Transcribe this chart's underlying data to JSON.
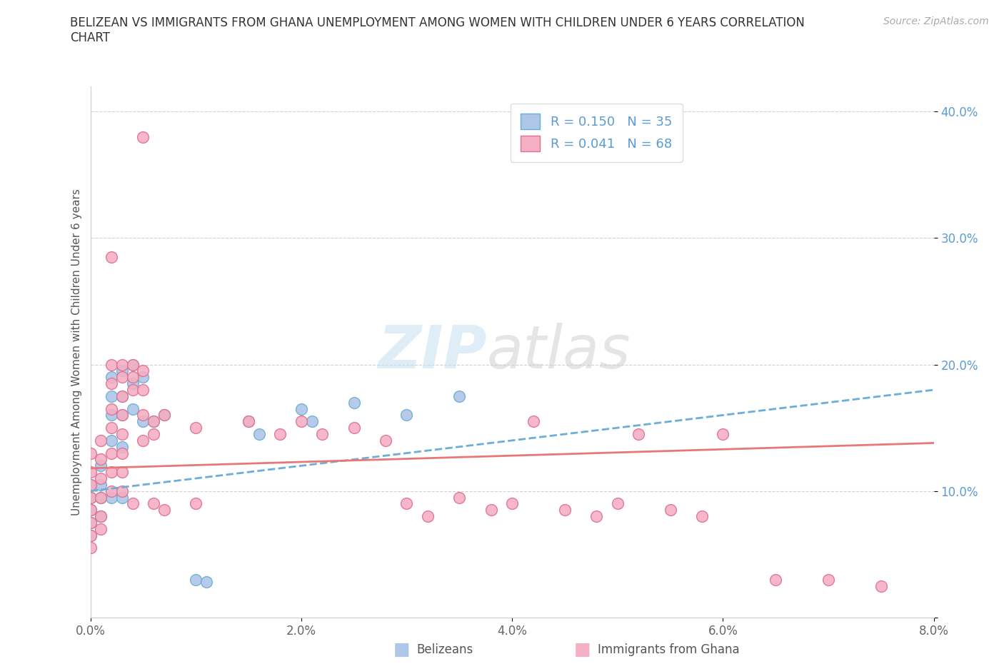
{
  "title": "BELIZEAN VS IMMIGRANTS FROM GHANA UNEMPLOYMENT AMONG WOMEN WITH CHILDREN UNDER 6 YEARS CORRELATION\nCHART",
  "source_text": "Source: ZipAtlas.com",
  "ylabel": "Unemployment Among Women with Children Under 6 years",
  "label_belizeans": "Belizeans",
  "label_ghana": "Immigrants from Ghana",
  "xmin": 0.0,
  "xmax": 0.08,
  "ymin": 0.0,
  "ymax": 0.42,
  "x_ticks": [
    0.0,
    0.02,
    0.04,
    0.06,
    0.08
  ],
  "y_ticks": [
    0.0,
    0.1,
    0.2,
    0.3,
    0.4
  ],
  "belizean_color": "#aec6e8",
  "belizean_edge": "#6baed6",
  "ghana_color": "#f4afc3",
  "ghana_edge": "#e07090",
  "belizean_line_color": "#6baed6",
  "ghana_line_color": "#e87878",
  "R_belizean": 0.15,
  "N_belizean": 35,
  "R_ghana": 0.041,
  "N_ghana": 68,
  "legend_text_color": "#5b9bd5",
  "watermark_text": "ZIPatlas",
  "belizean_scatter_x": [
    0.0,
    0.0,
    0.0,
    0.0,
    0.0,
    0.001,
    0.001,
    0.001,
    0.001,
    0.002,
    0.002,
    0.002,
    0.002,
    0.002,
    0.003,
    0.003,
    0.003,
    0.003,
    0.003,
    0.004,
    0.004,
    0.004,
    0.005,
    0.005,
    0.006,
    0.007,
    0.01,
    0.011,
    0.015,
    0.016,
    0.02,
    0.021,
    0.025,
    0.03,
    0.035
  ],
  "belizean_scatter_y": [
    0.105,
    0.095,
    0.085,
    0.075,
    0.065,
    0.12,
    0.105,
    0.095,
    0.08,
    0.19,
    0.175,
    0.16,
    0.14,
    0.095,
    0.195,
    0.175,
    0.16,
    0.135,
    0.095,
    0.2,
    0.185,
    0.165,
    0.19,
    0.155,
    0.155,
    0.16,
    0.03,
    0.028,
    0.155,
    0.145,
    0.165,
    0.155,
    0.17,
    0.16,
    0.175
  ],
  "ghana_scatter_x": [
    0.0,
    0.0,
    0.0,
    0.0,
    0.0,
    0.0,
    0.0,
    0.0,
    0.001,
    0.001,
    0.001,
    0.001,
    0.001,
    0.001,
    0.002,
    0.002,
    0.002,
    0.002,
    0.002,
    0.002,
    0.002,
    0.002,
    0.003,
    0.003,
    0.003,
    0.003,
    0.003,
    0.003,
    0.003,
    0.003,
    0.004,
    0.004,
    0.004,
    0.004,
    0.005,
    0.005,
    0.005,
    0.005,
    0.005,
    0.006,
    0.006,
    0.006,
    0.007,
    0.007,
    0.01,
    0.01,
    0.015,
    0.018,
    0.02,
    0.022,
    0.025,
    0.028,
    0.03,
    0.032,
    0.035,
    0.038,
    0.04,
    0.042,
    0.045,
    0.048,
    0.05,
    0.052,
    0.055,
    0.058,
    0.06,
    0.065,
    0.07,
    0.075
  ],
  "ghana_scatter_y": [
    0.13,
    0.115,
    0.105,
    0.095,
    0.085,
    0.075,
    0.065,
    0.055,
    0.14,
    0.125,
    0.11,
    0.095,
    0.08,
    0.07,
    0.285,
    0.2,
    0.185,
    0.165,
    0.15,
    0.13,
    0.115,
    0.1,
    0.2,
    0.19,
    0.175,
    0.16,
    0.145,
    0.13,
    0.115,
    0.1,
    0.2,
    0.19,
    0.18,
    0.09,
    0.38,
    0.195,
    0.18,
    0.16,
    0.14,
    0.155,
    0.145,
    0.09,
    0.16,
    0.085,
    0.15,
    0.09,
    0.155,
    0.145,
    0.155,
    0.145,
    0.15,
    0.14,
    0.09,
    0.08,
    0.095,
    0.085,
    0.09,
    0.155,
    0.085,
    0.08,
    0.09,
    0.145,
    0.085,
    0.08,
    0.145,
    0.03,
    0.03,
    0.025
  ]
}
